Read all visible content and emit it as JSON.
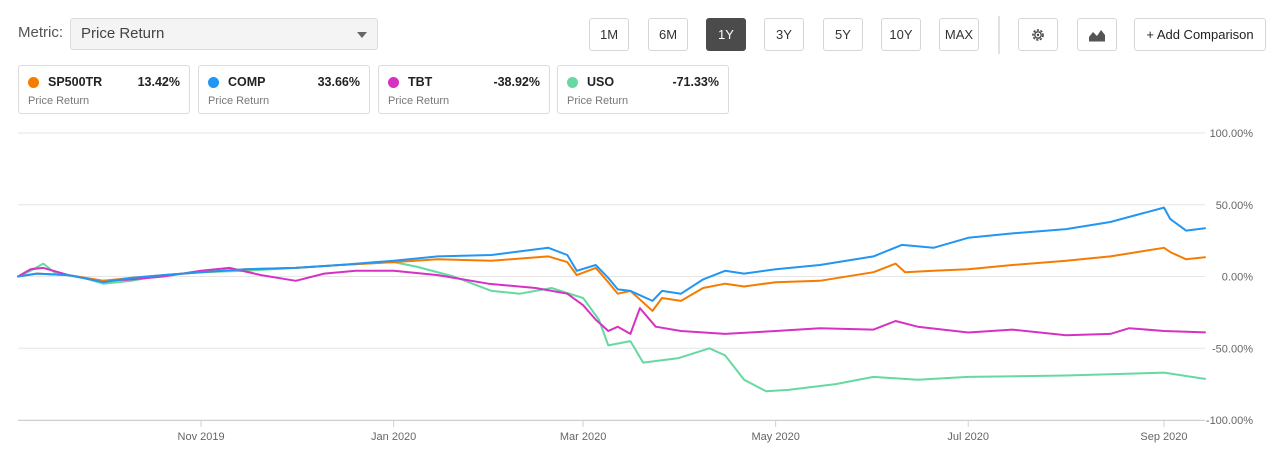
{
  "toolbar": {
    "metric_label": "Metric:",
    "metric_value": "Price Return",
    "ranges": [
      "1M",
      "6M",
      "1Y",
      "3Y",
      "5Y",
      "10Y",
      "MAX"
    ],
    "active_range": "1Y",
    "settings_icon": "gear-icon",
    "chart_type_icon": "area-chart-icon",
    "add_comparison_label": "+ Add Comparison"
  },
  "legend": [
    {
      "ticker": "SP500TR",
      "change": "13.42%",
      "metric": "Price Return",
      "color": "#f57c00"
    },
    {
      "ticker": "COMP",
      "change": "33.66%",
      "metric": "Price Return",
      "color": "#2196f3"
    },
    {
      "ticker": "TBT",
      "change": "-38.92%",
      "metric": "Price Return",
      "color": "#d532c4"
    },
    {
      "ticker": "USO",
      "change": "-71.33%",
      "metric": "Price Return",
      "color": "#66d9a0"
    }
  ],
  "chart_data": {
    "type": "line",
    "title": "",
    "xlabel": "",
    "ylabel": "",
    "x_range": [
      "2019-09-04",
      "2020-09-14"
    ],
    "ylim": [
      -100,
      100
    ],
    "y_ticks": [
      100,
      50,
      0,
      -50,
      -100
    ],
    "y_tick_labels": [
      "100.00%",
      "50.00%",
      "0.00%",
      "-50.00%",
      "-100.00%"
    ],
    "x_ticks": [
      "2019-11-01",
      "2020-01-01",
      "2020-03-01",
      "2020-05-01",
      "2020-07-01",
      "2020-09-01"
    ],
    "x_tick_labels": [
      "Nov 2019",
      "Jan 2020",
      "Mar 2020",
      "May 2020",
      "Jul 2020",
      "Sep 2020"
    ],
    "grid": true,
    "series": [
      {
        "name": "SP500TR",
        "color": "#f57c00",
        "points": [
          [
            "2019-09-04",
            0
          ],
          [
            "2019-09-10",
            2
          ],
          [
            "2019-09-20",
            1
          ],
          [
            "2019-10-01",
            -3
          ],
          [
            "2019-10-10",
            -1
          ],
          [
            "2019-10-20",
            1
          ],
          [
            "2019-11-01",
            3
          ],
          [
            "2019-11-15",
            5
          ],
          [
            "2019-12-01",
            6
          ],
          [
            "2019-12-15",
            8
          ],
          [
            "2020-01-01",
            10
          ],
          [
            "2020-01-15",
            12
          ],
          [
            "2020-02-01",
            11
          ],
          [
            "2020-02-19",
            14
          ],
          [
            "2020-02-25",
            10
          ],
          [
            "2020-02-28",
            1
          ],
          [
            "2020-03-05",
            6
          ],
          [
            "2020-03-09",
            -4
          ],
          [
            "2020-03-12",
            -12
          ],
          [
            "2020-03-16",
            -10
          ],
          [
            "2020-03-23",
            -24
          ],
          [
            "2020-03-26",
            -15
          ],
          [
            "2020-04-01",
            -17
          ],
          [
            "2020-04-08",
            -8
          ],
          [
            "2020-04-15",
            -5
          ],
          [
            "2020-04-21",
            -7
          ],
          [
            "2020-05-01",
            -4
          ],
          [
            "2020-05-15",
            -3
          ],
          [
            "2020-06-01",
            3
          ],
          [
            "2020-06-08",
            9
          ],
          [
            "2020-06-11",
            3
          ],
          [
            "2020-06-20",
            4
          ],
          [
            "2020-07-01",
            5
          ],
          [
            "2020-07-15",
            8
          ],
          [
            "2020-08-01",
            11
          ],
          [
            "2020-08-15",
            14
          ],
          [
            "2020-09-01",
            20
          ],
          [
            "2020-09-03",
            17
          ],
          [
            "2020-09-08",
            12
          ],
          [
            "2020-09-14",
            13.42
          ]
        ]
      },
      {
        "name": "COMP",
        "color": "#2196f3",
        "points": [
          [
            "2019-09-04",
            0
          ],
          [
            "2019-09-10",
            2
          ],
          [
            "2019-09-20",
            1
          ],
          [
            "2019-10-01",
            -4
          ],
          [
            "2019-10-10",
            -1
          ],
          [
            "2019-10-20",
            1
          ],
          [
            "2019-11-01",
            3
          ],
          [
            "2019-11-15",
            5
          ],
          [
            "2019-12-01",
            6
          ],
          [
            "2019-12-15",
            8
          ],
          [
            "2020-01-01",
            11
          ],
          [
            "2020-01-15",
            14
          ],
          [
            "2020-02-01",
            15
          ],
          [
            "2020-02-19",
            20
          ],
          [
            "2020-02-25",
            15
          ],
          [
            "2020-02-28",
            4
          ],
          [
            "2020-03-05",
            8
          ],
          [
            "2020-03-09",
            -1
          ],
          [
            "2020-03-12",
            -9
          ],
          [
            "2020-03-16",
            -10
          ],
          [
            "2020-03-23",
            -17
          ],
          [
            "2020-03-26",
            -10
          ],
          [
            "2020-04-01",
            -12
          ],
          [
            "2020-04-08",
            -2
          ],
          [
            "2020-04-15",
            4
          ],
          [
            "2020-04-21",
            2
          ],
          [
            "2020-05-01",
            5
          ],
          [
            "2020-05-15",
            8
          ],
          [
            "2020-06-01",
            14
          ],
          [
            "2020-06-10",
            22
          ],
          [
            "2020-06-20",
            20
          ],
          [
            "2020-07-01",
            27
          ],
          [
            "2020-07-15",
            30
          ],
          [
            "2020-08-01",
            33
          ],
          [
            "2020-08-15",
            38
          ],
          [
            "2020-09-01",
            48
          ],
          [
            "2020-09-03",
            40
          ],
          [
            "2020-09-08",
            32
          ],
          [
            "2020-09-14",
            33.66
          ]
        ]
      },
      {
        "name": "TBT",
        "color": "#d532c4",
        "points": [
          [
            "2019-09-04",
            0
          ],
          [
            "2019-09-08",
            5
          ],
          [
            "2019-09-12",
            6
          ],
          [
            "2019-09-20",
            1
          ],
          [
            "2019-10-01",
            -3
          ],
          [
            "2019-10-10",
            -2
          ],
          [
            "2019-10-20",
            0
          ],
          [
            "2019-11-01",
            4
          ],
          [
            "2019-11-10",
            6
          ],
          [
            "2019-11-20",
            1
          ],
          [
            "2019-12-01",
            -3
          ],
          [
            "2019-12-10",
            2
          ],
          [
            "2019-12-20",
            4
          ],
          [
            "2020-01-01",
            4
          ],
          [
            "2020-01-15",
            1
          ],
          [
            "2020-01-31",
            -5
          ],
          [
            "2020-02-15",
            -8
          ],
          [
            "2020-02-25",
            -12
          ],
          [
            "2020-03-01",
            -20
          ],
          [
            "2020-03-05",
            -30
          ],
          [
            "2020-03-09",
            -38
          ],
          [
            "2020-03-12",
            -35
          ],
          [
            "2020-03-16",
            -40
          ],
          [
            "2020-03-19",
            -22
          ],
          [
            "2020-03-24",
            -35
          ],
          [
            "2020-04-01",
            -38
          ],
          [
            "2020-04-15",
            -40
          ],
          [
            "2020-05-01",
            -38
          ],
          [
            "2020-05-15",
            -36
          ],
          [
            "2020-06-01",
            -37
          ],
          [
            "2020-06-08",
            -31
          ],
          [
            "2020-06-15",
            -35
          ],
          [
            "2020-07-01",
            -39
          ],
          [
            "2020-07-15",
            -37
          ],
          [
            "2020-08-01",
            -41
          ],
          [
            "2020-08-15",
            -40
          ],
          [
            "2020-08-21",
            -36
          ],
          [
            "2020-09-01",
            -38
          ],
          [
            "2020-09-14",
            -38.92
          ]
        ]
      },
      {
        "name": "USO",
        "color": "#66d9a0",
        "points": [
          [
            "2019-09-04",
            0
          ],
          [
            "2019-09-08",
            4
          ],
          [
            "2019-09-12",
            9
          ],
          [
            "2019-09-16",
            2
          ],
          [
            "2019-09-25",
            -1
          ],
          [
            "2019-10-01",
            -5
          ],
          [
            "2019-10-10",
            -3
          ],
          [
            "2019-10-20",
            1
          ],
          [
            "2019-11-01",
            3
          ],
          [
            "2019-11-15",
            4
          ],
          [
            "2019-12-01",
            6
          ],
          [
            "2019-12-15",
            8
          ],
          [
            "2020-01-01",
            10
          ],
          [
            "2020-01-08",
            7
          ],
          [
            "2020-01-20",
            0
          ],
          [
            "2020-02-01",
            -10
          ],
          [
            "2020-02-10",
            -12
          ],
          [
            "2020-02-20",
            -8
          ],
          [
            "2020-03-01",
            -15
          ],
          [
            "2020-03-06",
            -30
          ],
          [
            "2020-03-09",
            -48
          ],
          [
            "2020-03-16",
            -45
          ],
          [
            "2020-03-20",
            -60
          ],
          [
            "2020-03-31",
            -57
          ],
          [
            "2020-04-10",
            -50
          ],
          [
            "2020-04-15",
            -55
          ],
          [
            "2020-04-21",
            -72
          ],
          [
            "2020-04-28",
            -80
          ],
          [
            "2020-05-05",
            -79
          ],
          [
            "2020-05-20",
            -75
          ],
          [
            "2020-06-01",
            -70
          ],
          [
            "2020-06-15",
            -72
          ],
          [
            "2020-07-01",
            -70
          ],
          [
            "2020-08-01",
            -69
          ],
          [
            "2020-09-01",
            -67
          ],
          [
            "2020-09-14",
            -71.33
          ]
        ]
      }
    ]
  }
}
